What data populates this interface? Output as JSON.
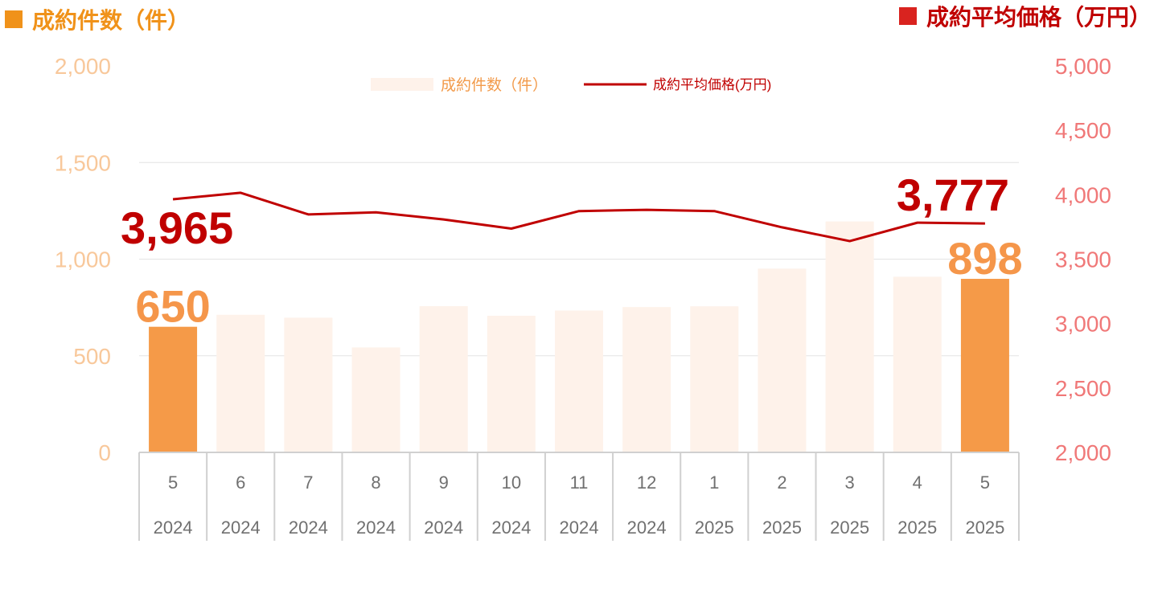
{
  "header": {
    "left_title": "成約件数（件）",
    "right_title": "成約平均価格（万円）",
    "left_color": "#F0921A",
    "right_color": "#D9231F"
  },
  "chart_data": {
    "type": "bar+line",
    "categories": [
      {
        "month": "5",
        "year": "2024"
      },
      {
        "month": "6",
        "year": "2024"
      },
      {
        "month": "7",
        "year": "2024"
      },
      {
        "month": "8",
        "year": "2024"
      },
      {
        "month": "9",
        "year": "2024"
      },
      {
        "month": "10",
        "year": "2024"
      },
      {
        "month": "11",
        "year": "2024"
      },
      {
        "month": "12",
        "year": "2024"
      },
      {
        "month": "1",
        "year": "2025"
      },
      {
        "month": "2",
        "year": "2025"
      },
      {
        "month": "3",
        "year": "2025"
      },
      {
        "month": "4",
        "year": "2025"
      },
      {
        "month": "5",
        "year": "2025"
      }
    ],
    "series": [
      {
        "name": "成約件数（件）",
        "type": "bar",
        "axis": "left",
        "values": [
          650,
          712,
          697,
          543,
          757,
          707,
          734,
          752,
          756,
          951,
          1195,
          909,
          898
        ],
        "highlight_indices": [
          0,
          12
        ],
        "color": "#FEF2EA",
        "highlight_color": "#F59A48"
      },
      {
        "name": "成約平均価格(万円)",
        "type": "line",
        "axis": "right",
        "values": [
          3965,
          4015,
          3847,
          3863,
          3808,
          3737,
          3873,
          3883,
          3873,
          3747,
          3640,
          3783,
          3777
        ],
        "color": "#C00000"
      }
    ],
    "left_axis": {
      "min": 0,
      "max": 2000,
      "ticks": [
        0,
        500,
        1000,
        1500,
        2000
      ],
      "tick_labels": [
        "0",
        "500",
        "1,000",
        "1,500",
        "2,000"
      ],
      "color": "#F8C89B"
    },
    "right_axis": {
      "min": 2000,
      "max": 5000,
      "ticks": [
        2000,
        2500,
        3000,
        3500,
        4000,
        4500,
        5000
      ],
      "tick_labels": [
        "2,000",
        "2,500",
        "3,000",
        "3,500",
        "4,000",
        "4,500",
        "5,000"
      ],
      "color": "#F07878"
    },
    "data_labels": [
      {
        "series": 0,
        "index": 0,
        "text": "650"
      },
      {
        "series": 0,
        "index": 12,
        "text": "898"
      },
      {
        "series": 1,
        "index": 0,
        "text": "3,965"
      },
      {
        "series": 1,
        "index": 12,
        "text": "3,777"
      }
    ],
    "grid": true,
    "legend_position": "top-center"
  }
}
